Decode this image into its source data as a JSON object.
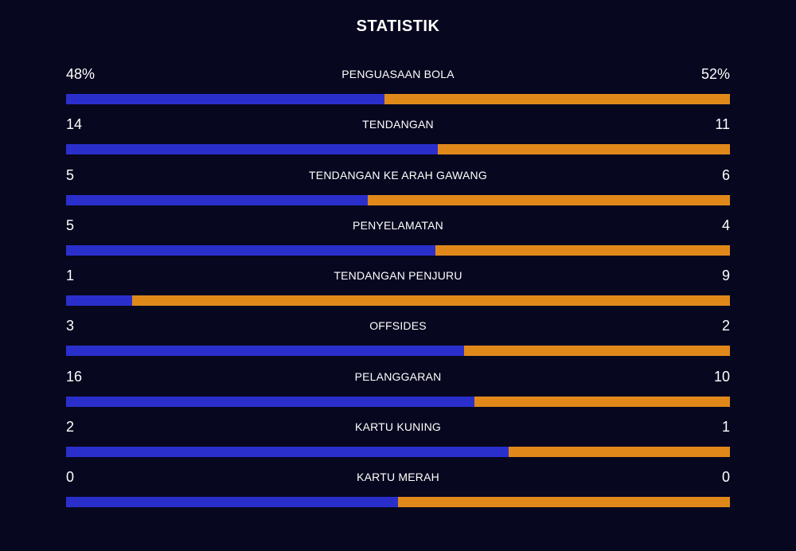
{
  "title": "STATISTIK",
  "colors": {
    "home": "#2a2fcc",
    "away": "#e0891a",
    "background": "#07071f"
  },
  "stats": [
    {
      "label": "PENGUASAAN BOLA",
      "home_text": "48%",
      "away_text": "52%",
      "home_share": 0.48
    },
    {
      "label": "TENDANGAN",
      "home_text": "14",
      "away_text": "11",
      "home_share": 0.56
    },
    {
      "label": "TENDANGAN KE ARAH GAWANG",
      "home_text": "5",
      "away_text": "6",
      "home_share": 0.455
    },
    {
      "label": "PENYELAMATAN",
      "home_text": "5",
      "away_text": "4",
      "home_share": 0.556
    },
    {
      "label": "TENDANGAN PENJURU",
      "home_text": "1",
      "away_text": "9",
      "home_share": 0.1
    },
    {
      "label": "OFFSIDES",
      "home_text": "3",
      "away_text": "2",
      "home_share": 0.6
    },
    {
      "label": "PELANGGARAN",
      "home_text": "16",
      "away_text": "10",
      "home_share": 0.615
    },
    {
      "label": "KARTU KUNING",
      "home_text": "2",
      "away_text": "1",
      "home_share": 0.667
    },
    {
      "label": "KARTU MERAH",
      "home_text": "0",
      "away_text": "0",
      "home_share": 0.5
    }
  ]
}
